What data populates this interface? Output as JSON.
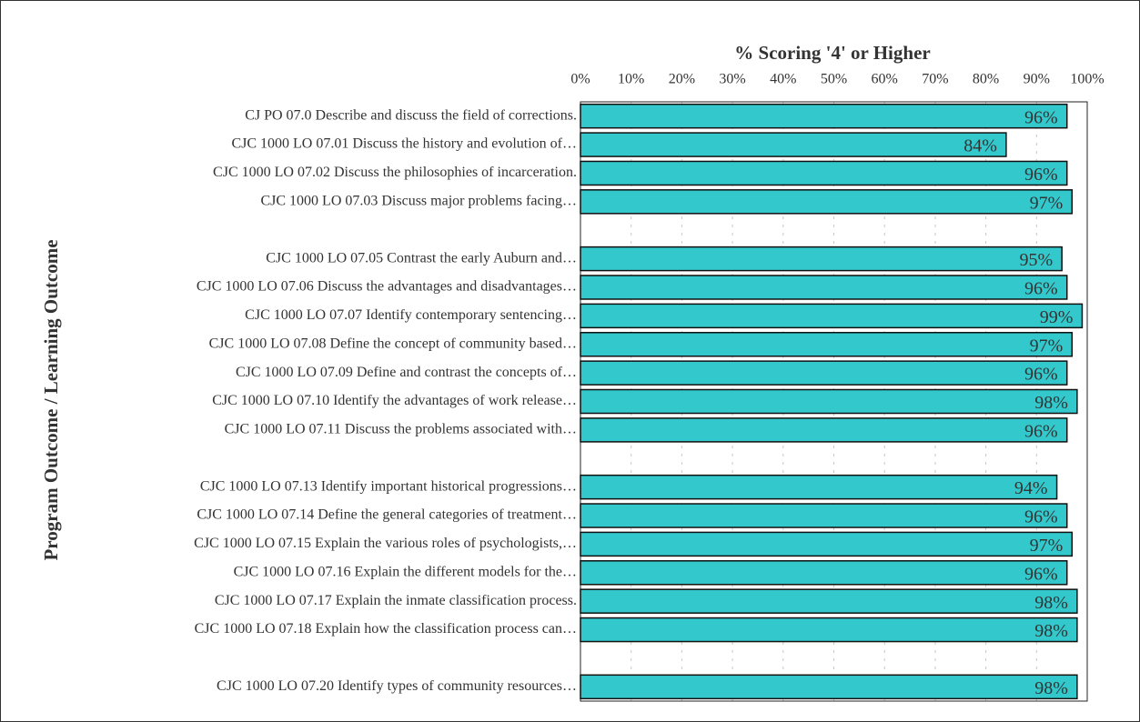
{
  "chart_data": {
    "type": "bar",
    "orientation": "horizontal",
    "x_label": "% Scoring '4' or Higher",
    "y_label": "Program Outcome / Learning Outcome",
    "categories": [
      "CJ PO 07.0 Describe and discuss the field of corrections.",
      "CJC 1000 LO 07.01 Discuss the history and evolution of…",
      "CJC 1000 LO 07.02 Discuss the philosophies of incarceration.",
      "CJC 1000 LO 07.03 Discuss major problems facing…",
      null,
      "CJC 1000 LO 07.05 Contrast the early Auburn and…",
      "CJC 1000 LO 07.06 Discuss the advantages and disadvantages…",
      "CJC 1000 LO 07.07 Identify contemporary sentencing…",
      "CJC 1000 LO 07.08 Define the concept of community based…",
      "CJC 1000 LO 07.09 Define and contrast the concepts of…",
      "CJC 1000 LO 07.10 Identify the advantages of work release…",
      "CJC 1000 LO 07.11 Discuss the problems associated with…",
      null,
      "CJC 1000 LO 07.13 Identify important historical progressions…",
      "CJC 1000 LO 07.14 Define the general categories of treatment…",
      "CJC 1000 LO 07.15 Explain the various roles of psychologists,…",
      "CJC 1000 LO 07.16 Explain the different models for the…",
      "CJC 1000 LO 07.17 Explain the inmate classification process.",
      "CJC 1000 LO 07.18 Explain how the classification process can…",
      null,
      "CJC 1000 LO 07.20 Identify types of community resources…"
    ],
    "values": [
      96,
      84,
      96,
      97,
      null,
      95,
      96,
      99,
      97,
      96,
      98,
      96,
      null,
      94,
      96,
      97,
      96,
      98,
      98,
      null,
      98
    ],
    "value_labels": [
      "96%",
      "84%",
      "96%",
      "97%",
      null,
      "95%",
      "96%",
      "99%",
      "97%",
      "96%",
      "98%",
      "96%",
      null,
      "94%",
      "96%",
      "97%",
      "96%",
      "98%",
      "98%",
      null,
      "98%"
    ],
    "color": "#33c8cc",
    "xlim": [
      0,
      100
    ],
    "xticks": [
      {
        "value": 0,
        "label": "0%"
      },
      {
        "value": 10,
        "label": "10%"
      },
      {
        "value": 20,
        "label": "20%"
      },
      {
        "value": 30,
        "label": "30%"
      },
      {
        "value": 40,
        "label": "40%"
      },
      {
        "value": 50,
        "label": "50%"
      },
      {
        "value": 60,
        "label": "60%"
      },
      {
        "value": 70,
        "label": "70%"
      },
      {
        "value": 80,
        "label": "80%"
      },
      {
        "value": 90,
        "label": "90%"
      },
      {
        "value": 100,
        "label": "100%"
      }
    ],
    "grid": true
  }
}
